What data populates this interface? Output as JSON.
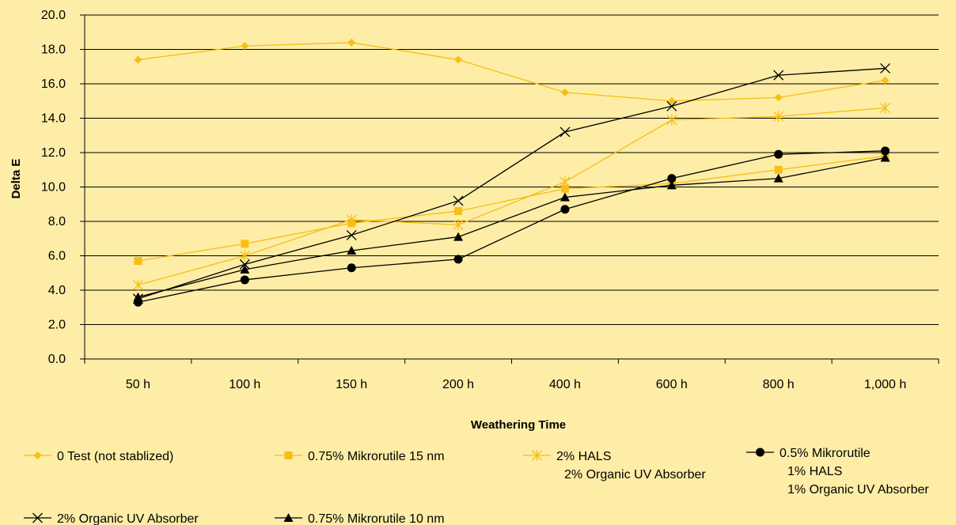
{
  "chart_data": {
    "type": "line",
    "title": "",
    "xlabel": "Weathering Time",
    "ylabel": "Delta E",
    "categories": [
      "50 h",
      "100 h",
      "150 h",
      "200 h",
      "400 h",
      "600 h",
      "800 h",
      "1,000 h"
    ],
    "ylim": [
      0,
      20
    ],
    "yticks": [
      "0.0",
      "2.0",
      "4.0",
      "6.0",
      "8.0",
      "10.0",
      "12.0",
      "14.0",
      "16.0",
      "18.0",
      "20.0"
    ],
    "grid": "horizontal",
    "legend_position": "bottom",
    "series": [
      {
        "name": "0 Test (not stablized)",
        "label_lines": [
          "0 Test (not stablized)"
        ],
        "color": "#F6BE16",
        "marker": "diamond",
        "values": [
          17.4,
          18.2,
          18.4,
          17.4,
          15.5,
          15.0,
          15.2,
          16.2
        ]
      },
      {
        "name": "0.75% Mikrorutile 15 nm",
        "label_lines": [
          "0.75% Mikrorutile 15 nm"
        ],
        "color": "#F6BE16",
        "marker": "square",
        "values": [
          5.7,
          6.7,
          7.9,
          8.6,
          9.9,
          10.2,
          11.0,
          11.8
        ]
      },
      {
        "name": "2% HALS 2% Organic UV Absorber",
        "label_lines": [
          "2% HALS",
          "2% Organic UV Absorber"
        ],
        "color": "#F6BE16",
        "marker": "star",
        "values": [
          4.3,
          6.0,
          8.1,
          7.8,
          10.3,
          13.9,
          14.1,
          14.6
        ]
      },
      {
        "name": "0.5% Mikrorutile 1% HALS 1% Organic UV Absorber",
        "label_lines": [
          "0.5% Mikrorutile",
          "1% HALS",
          "1% Organic UV Absorber"
        ],
        "color": "#000000",
        "marker": "circle",
        "values": [
          3.3,
          4.6,
          5.3,
          5.8,
          8.7,
          10.5,
          11.9,
          12.1
        ]
      },
      {
        "name": "2% Organic UV Absorber",
        "label_lines": [
          "2% Organic UV Absorber"
        ],
        "color": "#000000",
        "marker": "x",
        "values": [
          3.5,
          5.5,
          7.2,
          9.2,
          13.2,
          14.7,
          16.5,
          16.9
        ]
      },
      {
        "name": "0.75% Mikrorutile 10 nm",
        "label_lines": [
          "0.75% Mikrorutile 10 nm"
        ],
        "color": "#000000",
        "marker": "triangle",
        "values": [
          3.6,
          5.2,
          6.3,
          7.1,
          9.4,
          10.1,
          10.5,
          11.7
        ]
      }
    ]
  }
}
